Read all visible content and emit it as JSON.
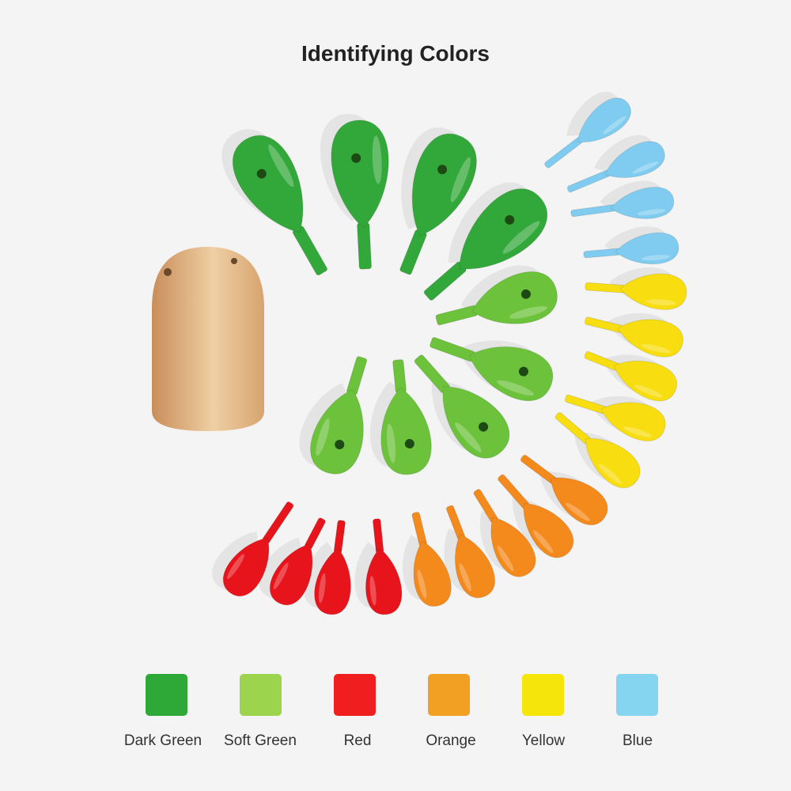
{
  "title": "Identifying Colors",
  "swatches": [
    {
      "label": "Dark Green",
      "color": "#2ea836"
    },
    {
      "label": "Soft Green",
      "color": "#9dd44e"
    },
    {
      "label": "Red",
      "color": "#f01e1e"
    },
    {
      "label": "Orange",
      "color": "#f2a024"
    },
    {
      "label": "Yellow",
      "color": "#f5e50a"
    },
    {
      "label": "Blue",
      "color": "#85d4f0"
    }
  ],
  "bead_colors": {
    "dark_green": "#33a83a",
    "soft_green": "#6cc23a",
    "red": "#e8141c",
    "orange": "#f48a1c",
    "yellow": "#f8de10",
    "blue": "#80ccf0",
    "wood": "#e2b98a"
  }
}
